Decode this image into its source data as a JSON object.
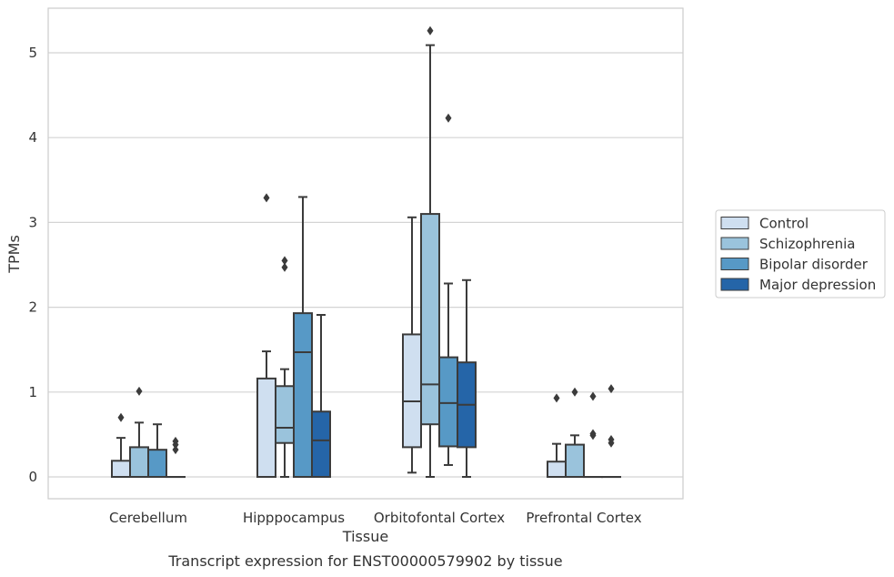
{
  "chart_data": {
    "type": "box",
    "title": "",
    "caption": "Transcript expression for ENST00000579902 by tissue",
    "xlabel": "Tissue",
    "ylabel": "TPMs",
    "ylim": [
      -0.25,
      5.5
    ],
    "yticks": [
      0,
      1,
      2,
      3,
      4,
      5
    ],
    "ytick_labels": [
      "0",
      "1",
      "2",
      "3",
      "4",
      "5"
    ],
    "grid": "horizontal",
    "legend_position": "right",
    "categories": [
      "Cerebellum",
      "Hipppocampus",
      "Orbitofontal Cortex",
      "Prefrontal Cortex"
    ],
    "series": [
      {
        "name": "Control",
        "color": "#cfdff0",
        "boxes": [
          {
            "whisker_low": 0,
            "q1": 0,
            "median": 0,
            "q3": 0.19,
            "whisker_high": 0.46,
            "outliers": [
              0.7
            ]
          },
          {
            "whisker_low": 0,
            "q1": 0,
            "median": 0,
            "q3": 1.16,
            "whisker_high": 1.48,
            "outliers": [
              3.29
            ]
          },
          {
            "whisker_low": 0.05,
            "q1": 0.35,
            "median": 0.89,
            "q3": 1.68,
            "whisker_high": 3.06,
            "outliers": []
          },
          {
            "whisker_low": 0,
            "q1": 0,
            "median": 0,
            "q3": 0.18,
            "whisker_high": 0.39,
            "outliers": [
              0.93
            ]
          }
        ]
      },
      {
        "name": "Schizophrenia",
        "color": "#9ac3dc",
        "boxes": [
          {
            "whisker_low": 0,
            "q1": 0,
            "median": 0,
            "q3": 0.35,
            "whisker_high": 0.64,
            "outliers": [
              1.01
            ]
          },
          {
            "whisker_low": 0,
            "q1": 0.4,
            "median": 0.58,
            "q3": 1.07,
            "whisker_high": 1.27,
            "outliers": [
              2.47,
              2.55
            ]
          },
          {
            "whisker_low": 0,
            "q1": 0.62,
            "median": 1.09,
            "q3": 3.1,
            "whisker_high": 5.09,
            "outliers": [
              5.26
            ]
          },
          {
            "whisker_low": 0,
            "q1": 0,
            "median": 0,
            "q3": 0.38,
            "whisker_high": 0.49,
            "outliers": [
              1.0
            ]
          }
        ]
      },
      {
        "name": "Bipolar disorder",
        "color": "#5799c6",
        "boxes": [
          {
            "whisker_low": 0,
            "q1": 0,
            "median": 0,
            "q3": 0.32,
            "whisker_high": 0.62,
            "outliers": []
          },
          {
            "whisker_low": 0,
            "q1": 0,
            "median": 1.47,
            "q3": 1.93,
            "whisker_high": 3.3,
            "outliers": []
          },
          {
            "whisker_low": 0.14,
            "q1": 0.36,
            "median": 0.87,
            "q3": 1.41,
            "whisker_high": 2.28,
            "outliers": [
              4.23
            ]
          },
          {
            "whisker_low": 0,
            "q1": 0,
            "median": 0,
            "q3": 0,
            "whisker_high": 0,
            "outliers": [
              0.49,
              0.51,
              0.95
            ]
          }
        ]
      },
      {
        "name": "Major depression",
        "color": "#2565a8",
        "boxes": [
          {
            "whisker_low": 0,
            "q1": 0,
            "median": 0,
            "q3": 0,
            "whisker_high": 0,
            "outliers": [
              0.32,
              0.38,
              0.42
            ]
          },
          {
            "whisker_low": 0,
            "q1": 0,
            "median": 0.43,
            "q3": 0.77,
            "whisker_high": 1.91,
            "outliers": []
          },
          {
            "whisker_low": 0,
            "q1": 0.35,
            "median": 0.85,
            "q3": 1.35,
            "whisker_high": 2.32,
            "outliers": []
          },
          {
            "whisker_low": 0,
            "q1": 0,
            "median": 0,
            "q3": 0,
            "whisker_high": 0,
            "outliers": [
              0.4,
              0.44,
              1.04
            ]
          }
        ]
      }
    ]
  }
}
